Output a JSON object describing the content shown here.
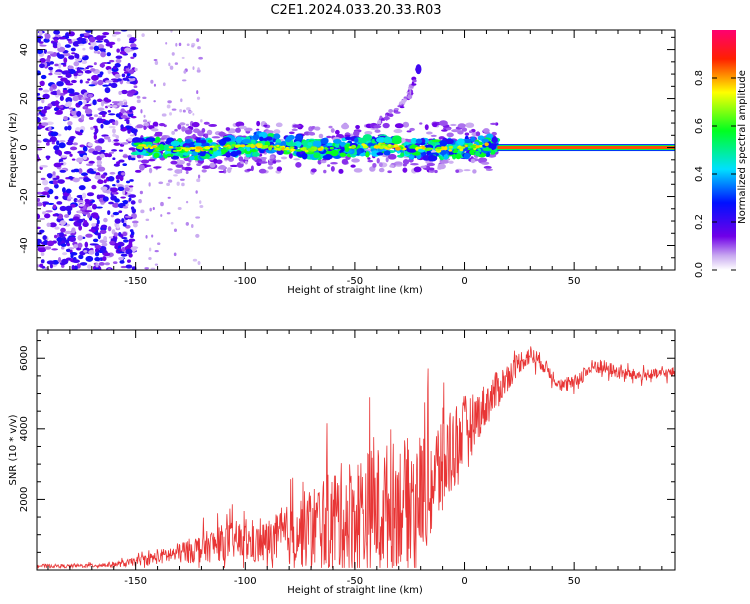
{
  "figure_title": "C2E1.2024.033.20.33.R03",
  "chart_data": [
    {
      "type": "heatmap",
      "title": "",
      "xlabel": "Height of straight line (km)",
      "ylabel": "Frequency (Hz)",
      "xlim": [
        -195,
        96
      ],
      "ylim": [
        -50,
        48
      ],
      "xticks": [
        -150,
        -100,
        -50,
        0,
        50
      ],
      "yticks": [
        -40,
        -20,
        0,
        20,
        40
      ],
      "colorbar": {
        "label": "Normalized spectral amplitude",
        "range": [
          0,
          1
        ],
        "ticks": [
          0.0,
          0.2,
          0.4,
          0.6,
          0.8
        ],
        "colormap": "rainbow (white-purple-blue-cyan-green-yellow-red-magenta)"
      },
      "features": [
        {
          "name": "noise",
          "x_range": [
            -195,
            -150
          ],
          "y_range": [
            -50,
            48
          ],
          "amplitude": 0.15
        },
        {
          "name": "band",
          "x_range": [
            -150,
            15
          ],
          "center_frequency": 0,
          "half_width_hz": 4,
          "amplitude": 0.55
        },
        {
          "name": "tone",
          "x_range": [
            15,
            96
          ],
          "frequency": 0,
          "amplitude": 0.85
        },
        {
          "name": "streak",
          "points": [
            [
              -40,
              10
            ],
            [
              -30,
              16
            ],
            [
              -25,
              22
            ],
            [
              -21,
              32
            ]
          ],
          "amplitude": 0.2
        }
      ]
    },
    {
      "type": "line",
      "title": "",
      "xlabel": "Height of straight line (km)",
      "ylabel": "SNR (10 * v/v)",
      "xlim": [
        -195,
        96
      ],
      "ylim": [
        0,
        6800
      ],
      "xticks": [
        -150,
        -100,
        -50,
        0,
        50
      ],
      "yticks": [
        2000,
        4000,
        6000
      ],
      "series": [
        {
          "color": "#e83535",
          "x": [
            -195,
            -180,
            -165,
            -155,
            -145,
            -135,
            -125,
            -115,
            -105,
            -95,
            -85,
            -75,
            -65,
            -55,
            -45,
            -35,
            -25,
            -15,
            -10,
            -5,
            0,
            5,
            10,
            15,
            20,
            25,
            30,
            35,
            40,
            45,
            50,
            55,
            60,
            70,
            80,
            96
          ],
          "y": [
            120,
            110,
            140,
            180,
            300,
            420,
            550,
            700,
            850,
            700,
            900,
            1100,
            1300,
            1500,
            1600,
            1800,
            2000,
            2400,
            3000,
            3500,
            4000,
            4300,
            4700,
            5100,
            5500,
            5900,
            6100,
            5900,
            5500,
            5200,
            5300,
            5600,
            5800,
            5600,
            5500,
            5600
          ],
          "noise_amplitude": [
            60,
            60,
            80,
            120,
            200,
            300,
            450,
            600,
            700,
            700,
            900,
            1300,
            1700,
            2000,
            2300,
            2300,
            2200,
            2100,
            2000,
            1600,
            1200,
            900,
            800,
            700,
            500,
            400,
            350,
            300,
            250,
            250,
            250,
            300,
            300,
            250,
            200,
            200
          ]
        }
      ]
    }
  ]
}
